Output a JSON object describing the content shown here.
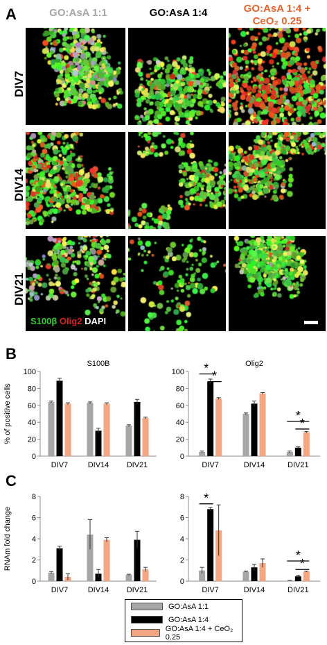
{
  "panel_letters": {
    "a": "A",
    "b": "B",
    "c": "C"
  },
  "conditions": [
    {
      "label": "GO:AsA 1:1",
      "color": "#a6a6a6"
    },
    {
      "label": "GO:AsA 1:4",
      "color": "#000000"
    },
    {
      "label": "GO:AsA 1:4 + CeO₂ 0.25",
      "color": "#f4a582"
    }
  ],
  "column_headers": [
    {
      "lines": [
        "GO:AsA 1:1"
      ],
      "color": "#a6a6a6"
    },
    {
      "lines": [
        "GO:AsA 1:4"
      ],
      "color": "#000000"
    },
    {
      "lines": [
        "GO:AsA 1:4 +",
        "CeO₂ 0.25"
      ],
      "color": "#e8632b"
    }
  ],
  "row_labels": [
    "DIV7",
    "DIV14",
    "DIV21"
  ],
  "stain_legend": [
    {
      "text": "S100β",
      "color": "#33cc33"
    },
    {
      "text": "Olig2",
      "color": "#e02020"
    },
    {
      "text": "DAPI",
      "color": "#ffffff"
    }
  ],
  "legend_labels": [
    "GO:AsA 1:1",
    "GO:AsA 1:4",
    "GO:AsA 1:4 + CeO₂ 0.25"
  ],
  "chart_data": [
    {
      "type": "bar",
      "title": "S100B",
      "ylabel": "% of positive cells",
      "ylim": [
        0,
        100
      ],
      "yticks": [
        0,
        20,
        40,
        60,
        80,
        100
      ],
      "categories": [
        "DIV7",
        "DIV14",
        "DIV21"
      ],
      "series": [
        {
          "name": "GO:AsA 1:1",
          "values": [
            64,
            63,
            36
          ],
          "errors": [
            1,
            1,
            1
          ]
        },
        {
          "name": "GO:AsA 1:4",
          "values": [
            89,
            30,
            64
          ],
          "errors": [
            3,
            3,
            3
          ]
        },
        {
          "name": "GO:AsA 1:4 + CeO₂ 0.25",
          "values": [
            62,
            62,
            45
          ],
          "errors": [
            1,
            1,
            1
          ]
        }
      ],
      "significance": []
    },
    {
      "type": "bar",
      "title": "Olig2",
      "ylabel": "",
      "ylim": [
        0,
        100
      ],
      "yticks": [
        0,
        20,
        40,
        60,
        80,
        100
      ],
      "categories": [
        "DIV7",
        "DIV14",
        "DIV21"
      ],
      "series": [
        {
          "name": "GO:AsA 1:1",
          "values": [
            5,
            50,
            5
          ],
          "errors": [
            1,
            1,
            1
          ]
        },
        {
          "name": "GO:AsA 1:4",
          "values": [
            88,
            62,
            10
          ],
          "errors": [
            3,
            3,
            1
          ]
        },
        {
          "name": "GO:AsA 1:4 + CeO₂ 0.25",
          "values": [
            68,
            74,
            28
          ],
          "errors": [
            1,
            1,
            1
          ]
        }
      ],
      "significance": [
        {
          "cat": 0,
          "from": 0,
          "to": 1,
          "y": 97,
          "label": "*"
        },
        {
          "cat": 0,
          "from": 1,
          "to": 2,
          "y": 88,
          "label": "*"
        },
        {
          "cat": 2,
          "from": 0,
          "to": 2,
          "y": 41,
          "label": "*"
        },
        {
          "cat": 2,
          "from": 1,
          "to": 2,
          "y": 32,
          "label": "*"
        }
      ]
    },
    {
      "type": "bar",
      "title": "",
      "ylabel": "RNAm fold change",
      "ylim": [
        0,
        8
      ],
      "yticks": [
        0,
        2,
        4,
        6,
        8
      ],
      "categories": [
        "DIV7",
        "DIV14",
        "DIV21"
      ],
      "series": [
        {
          "name": "GO:AsA 1:1",
          "values": [
            0.8,
            4.4,
            0.6
          ],
          "errors": [
            0.1,
            1.4,
            0.05
          ]
        },
        {
          "name": "GO:AsA 1:4",
          "values": [
            3.1,
            0.7,
            3.9
          ],
          "errors": [
            0.2,
            0.4,
            0.8
          ]
        },
        {
          "name": "GO:AsA 1:4 + CeO₂ 0.25",
          "values": [
            0.4,
            3.9,
            1.1
          ],
          "errors": [
            0.3,
            0.2,
            0.2
          ]
        }
      ],
      "significance": []
    },
    {
      "type": "bar",
      "title": "",
      "ylabel": "",
      "ylim": [
        0,
        8
      ],
      "yticks": [
        0,
        2,
        4,
        6,
        8
      ],
      "categories": [
        "DIV7",
        "DIV14",
        "DIV21"
      ],
      "series": [
        {
          "name": "GO:AsA 1:1",
          "values": [
            1.0,
            0.9,
            0.05
          ],
          "errors": [
            0.3,
            0.05,
            0.02
          ]
        },
        {
          "name": "GO:AsA 1:4",
          "values": [
            6.8,
            1.3,
            0.45
          ],
          "errors": [
            0.15,
            0.3,
            0.1
          ]
        },
        {
          "name": "GO:AsA 1:4 + CeO₂ 0.25",
          "values": [
            4.8,
            1.7,
            0.9
          ],
          "errors": [
            2.4,
            0.4,
            0.05
          ]
        }
      ],
      "significance": [
        {
          "cat": 0,
          "from": 0,
          "to": 1,
          "y": 7.3,
          "label": "*"
        },
        {
          "cat": 2,
          "from": 0,
          "to": 2,
          "y": 1.9,
          "label": "*"
        },
        {
          "cat": 2,
          "from": 1,
          "to": 2,
          "y": 1.1,
          "label": "*"
        }
      ]
    }
  ]
}
